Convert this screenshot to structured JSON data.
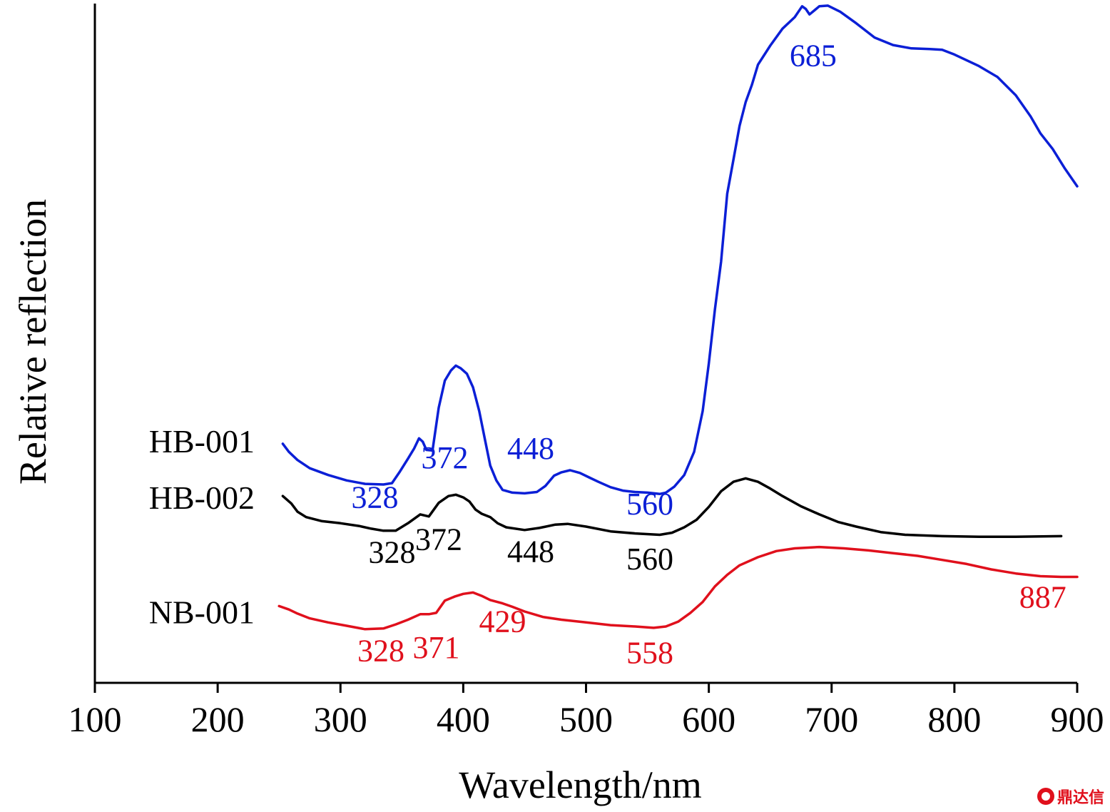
{
  "chart_data": {
    "type": "line",
    "xlabel": "Wavelength/nm",
    "ylabel": "Relative reflection",
    "xlim": [
      100,
      900
    ],
    "ylim": [
      0,
      100
    ],
    "x_ticks": [
      100,
      200,
      300,
      400,
      500,
      600,
      700,
      800,
      900
    ],
    "y_ticks_shown": false,
    "grid": false,
    "series": [
      {
        "name": "HB-001",
        "color": "#0b1fd6",
        "points": [
          [
            253,
            35.2
          ],
          [
            258,
            34.0
          ],
          [
            265,
            32.8
          ],
          [
            275,
            31.6
          ],
          [
            290,
            30.6
          ],
          [
            305,
            29.8
          ],
          [
            320,
            29.3
          ],
          [
            335,
            29.2
          ],
          [
            342,
            29.4
          ],
          [
            348,
            31.0
          ],
          [
            355,
            33.0
          ],
          [
            360,
            34.5
          ],
          [
            364,
            36.0
          ],
          [
            367,
            35.5
          ],
          [
            370,
            34.3
          ],
          [
            375,
            34.2
          ],
          [
            380,
            40.5
          ],
          [
            385,
            44.5
          ],
          [
            390,
            46.0
          ],
          [
            394,
            46.7
          ],
          [
            398,
            46.3
          ],
          [
            403,
            45.5
          ],
          [
            408,
            43.5
          ],
          [
            413,
            40.0
          ],
          [
            418,
            35.5
          ],
          [
            422,
            32.0
          ],
          [
            427,
            29.8
          ],
          [
            432,
            28.4
          ],
          [
            440,
            28.0
          ],
          [
            450,
            27.9
          ],
          [
            460,
            28.1
          ],
          [
            467,
            29.0
          ],
          [
            474,
            30.5
          ],
          [
            480,
            31.0
          ],
          [
            487,
            31.3
          ],
          [
            495,
            30.9
          ],
          [
            503,
            30.2
          ],
          [
            510,
            29.6
          ],
          [
            520,
            28.8
          ],
          [
            530,
            28.3
          ],
          [
            540,
            28.1
          ],
          [
            550,
            28.0
          ],
          [
            560,
            27.8
          ],
          [
            565,
            28.0
          ],
          [
            572,
            28.9
          ],
          [
            580,
            30.6
          ],
          [
            588,
            34.0
          ],
          [
            595,
            40.0
          ],
          [
            600,
            47.0
          ],
          [
            605,
            55.0
          ],
          [
            610,
            62.0
          ],
          [
            615,
            72.0
          ],
          [
            620,
            77.0
          ],
          [
            625,
            82.0
          ],
          [
            630,
            85.5
          ],
          [
            635,
            88.0
          ],
          [
            640,
            91.0
          ],
          [
            650,
            93.8
          ],
          [
            660,
            96.3
          ],
          [
            670,
            98.0
          ],
          [
            676,
            99.6
          ],
          [
            679,
            99.2
          ],
          [
            682,
            98.4
          ],
          [
            686,
            99.0
          ],
          [
            690,
            99.6
          ],
          [
            697,
            99.7
          ],
          [
            707,
            98.8
          ],
          [
            720,
            97.1
          ],
          [
            735,
            95.0
          ],
          [
            750,
            93.9
          ],
          [
            765,
            93.4
          ],
          [
            780,
            93.3
          ],
          [
            790,
            93.2
          ],
          [
            800,
            92.5
          ],
          [
            820,
            90.8
          ],
          [
            835,
            89.2
          ],
          [
            850,
            86.5
          ],
          [
            862,
            83.4
          ],
          [
            870,
            80.9
          ],
          [
            880,
            78.6
          ],
          [
            890,
            75.7
          ],
          [
            900,
            73.1
          ]
        ]
      },
      {
        "name": "HB-002",
        "color": "#000000",
        "points": [
          [
            253,
            27.5
          ],
          [
            260,
            26.4
          ],
          [
            265,
            25.2
          ],
          [
            272,
            24.4
          ],
          [
            285,
            23.8
          ],
          [
            300,
            23.5
          ],
          [
            315,
            23.1
          ],
          [
            325,
            22.7
          ],
          [
            335,
            22.4
          ],
          [
            345,
            22.4
          ],
          [
            355,
            23.5
          ],
          [
            365,
            24.8
          ],
          [
            372,
            24.5
          ],
          [
            380,
            26.5
          ],
          [
            388,
            27.5
          ],
          [
            394,
            27.7
          ],
          [
            400,
            27.3
          ],
          [
            405,
            26.7
          ],
          [
            410,
            25.5
          ],
          [
            415,
            24.9
          ],
          [
            422,
            24.4
          ],
          [
            428,
            23.5
          ],
          [
            435,
            22.9
          ],
          [
            450,
            22.5
          ],
          [
            462,
            22.8
          ],
          [
            475,
            23.3
          ],
          [
            485,
            23.4
          ],
          [
            500,
            23.0
          ],
          [
            520,
            22.3
          ],
          [
            540,
            22.0
          ],
          [
            560,
            21.8
          ],
          [
            570,
            22.1
          ],
          [
            580,
            22.9
          ],
          [
            590,
            24.0
          ],
          [
            600,
            25.9
          ],
          [
            610,
            28.2
          ],
          [
            620,
            29.6
          ],
          [
            630,
            30.1
          ],
          [
            640,
            29.6
          ],
          [
            650,
            28.6
          ],
          [
            660,
            27.5
          ],
          [
            675,
            26.0
          ],
          [
            690,
            24.8
          ],
          [
            705,
            23.7
          ],
          [
            720,
            23.0
          ],
          [
            740,
            22.2
          ],
          [
            760,
            21.8
          ],
          [
            790,
            21.6
          ],
          [
            820,
            21.5
          ],
          [
            850,
            21.5
          ],
          [
            887,
            21.6
          ]
        ]
      },
      {
        "name": "NB-001",
        "color": "#e0101c",
        "points": [
          [
            250,
            11.3
          ],
          [
            258,
            10.8
          ],
          [
            265,
            10.2
          ],
          [
            275,
            9.5
          ],
          [
            290,
            8.9
          ],
          [
            305,
            8.4
          ],
          [
            320,
            7.9
          ],
          [
            335,
            8.0
          ],
          [
            345,
            8.6
          ],
          [
            355,
            9.3
          ],
          [
            365,
            10.1
          ],
          [
            372,
            10.1
          ],
          [
            378,
            10.3
          ],
          [
            385,
            12.1
          ],
          [
            393,
            12.7
          ],
          [
            400,
            13.1
          ],
          [
            408,
            13.3
          ],
          [
            415,
            12.8
          ],
          [
            422,
            12.2
          ],
          [
            432,
            11.7
          ],
          [
            440,
            11.2
          ],
          [
            450,
            10.5
          ],
          [
            465,
            9.7
          ],
          [
            480,
            9.3
          ],
          [
            500,
            8.9
          ],
          [
            520,
            8.5
          ],
          [
            540,
            8.3
          ],
          [
            555,
            8.1
          ],
          [
            565,
            8.3
          ],
          [
            575,
            9.0
          ],
          [
            585,
            10.3
          ],
          [
            595,
            11.9
          ],
          [
            605,
            14.2
          ],
          [
            615,
            15.9
          ],
          [
            625,
            17.3
          ],
          [
            640,
            18.5
          ],
          [
            655,
            19.4
          ],
          [
            670,
            19.8
          ],
          [
            690,
            20.0
          ],
          [
            710,
            19.8
          ],
          [
            730,
            19.5
          ],
          [
            750,
            19.1
          ],
          [
            770,
            18.7
          ],
          [
            790,
            18.1
          ],
          [
            810,
            17.5
          ],
          [
            830,
            16.7
          ],
          [
            850,
            16.1
          ],
          [
            870,
            15.7
          ],
          [
            887,
            15.6
          ],
          [
            900,
            15.6
          ]
        ]
      }
    ],
    "series_labels": [
      {
        "series": "HB-001",
        "text": "HB-001"
      },
      {
        "series": "HB-002",
        "text": "HB-002"
      },
      {
        "series": "NB-001",
        "text": "NB-001"
      }
    ],
    "annotations": [
      {
        "text": "328",
        "x": 328,
        "y": 25.8,
        "series": "HB-001"
      },
      {
        "text": "372",
        "x": 385,
        "y": 31.6,
        "series": "HB-001"
      },
      {
        "text": "448",
        "x": 455,
        "y": 33.0,
        "series": "HB-001"
      },
      {
        "text": "560",
        "x": 552,
        "y": 24.8,
        "series": "HB-001"
      },
      {
        "text": "685",
        "x": 685,
        "y": 90.8,
        "series": "HB-001"
      },
      {
        "text": "328",
        "x": 342,
        "y": 17.7,
        "series": "HB-002"
      },
      {
        "text": "372",
        "x": 380,
        "y": 19.6,
        "series": "HB-002"
      },
      {
        "text": "448",
        "x": 455,
        "y": 17.8,
        "series": "HB-002"
      },
      {
        "text": "560",
        "x": 552,
        "y": 16.7,
        "series": "HB-002"
      },
      {
        "text": "328",
        "x": 333,
        "y": 3.2,
        "series": "NB-001"
      },
      {
        "text": "371",
        "x": 378,
        "y": 3.7,
        "series": "NB-001"
      },
      {
        "text": "429",
        "x": 432,
        "y": 7.5,
        "series": "NB-001"
      },
      {
        "text": "558",
        "x": 552,
        "y": 2.9,
        "series": "NB-001"
      },
      {
        "text": "887",
        "x": 872,
        "y": 11.1,
        "series": "NB-001"
      }
    ]
  },
  "watermark": {
    "text": "鼎达信",
    "color": "#e0101c"
  }
}
